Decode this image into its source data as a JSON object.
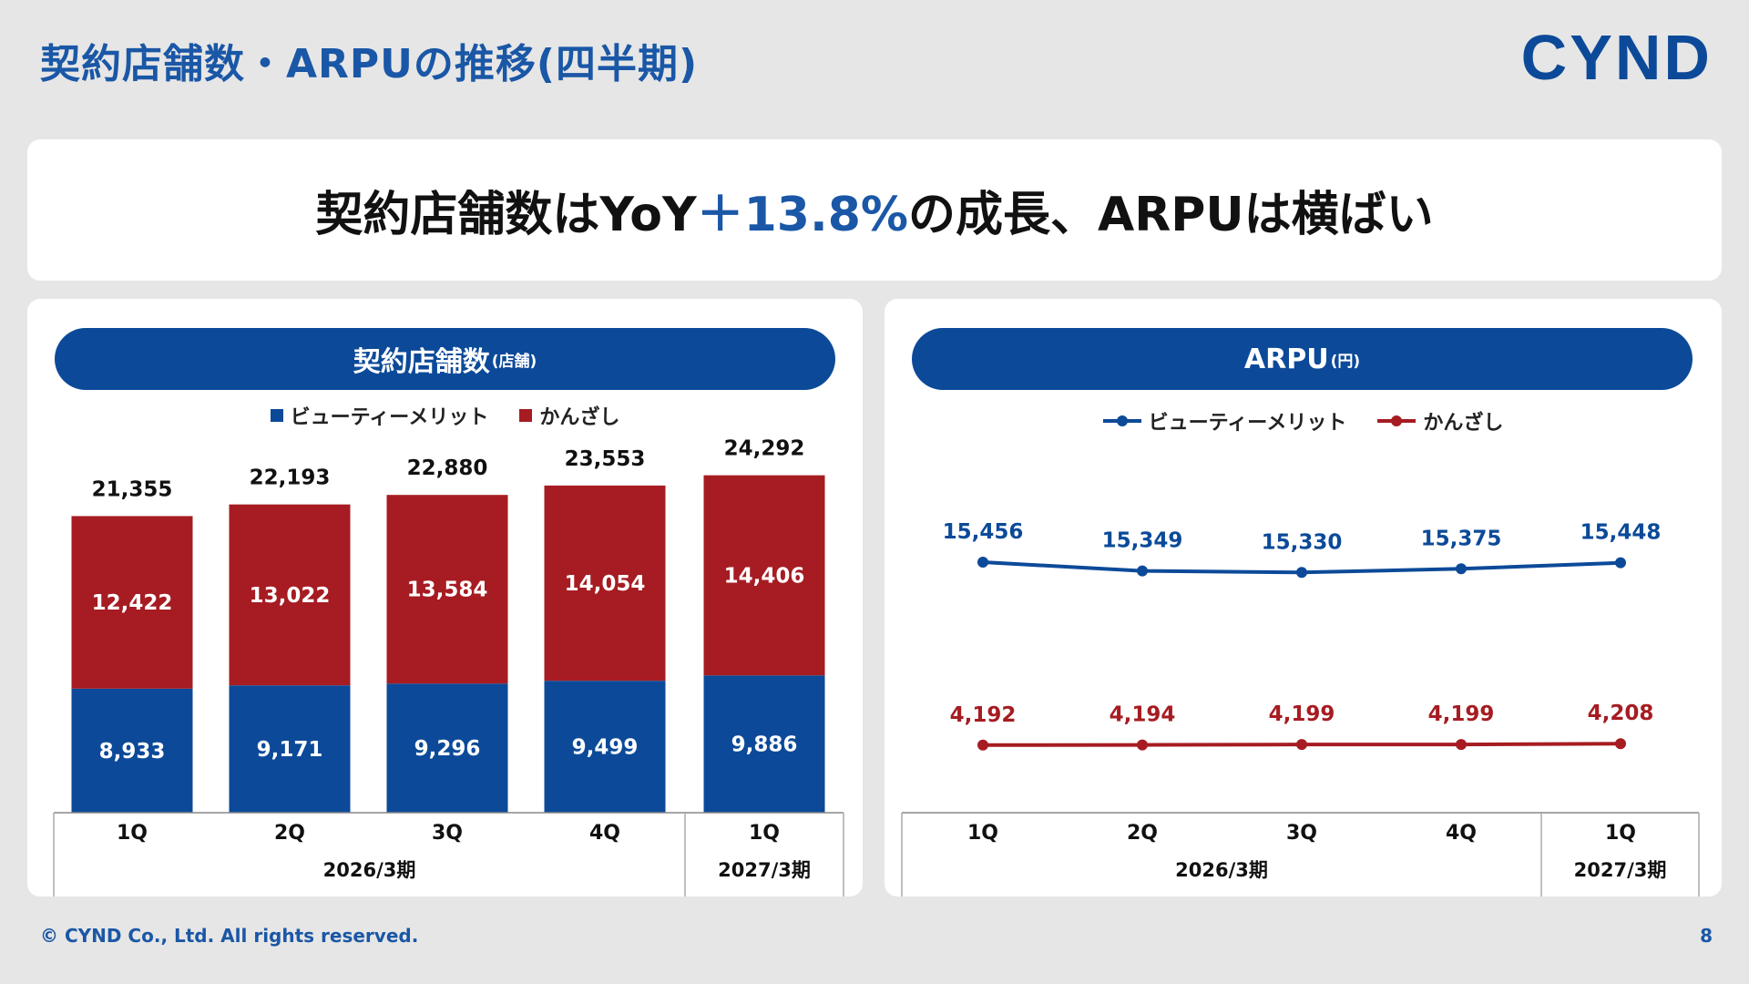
{
  "page_title": "契約店舗数・ARPUの推移(四半期)",
  "logo_text": "CYND",
  "headline": {
    "prefix": "契約店舗数はYoY",
    "highlight": "＋13.8%",
    "suffix": "の成長、ARPUは横ばい"
  },
  "footer": {
    "copyright": "© CYND Co., Ltd. All rights reserved.",
    "page_number": "8"
  },
  "colors": {
    "blue": "#0c4a99",
    "red": "#a61c22",
    "accent_text": "#1a57a6"
  },
  "chart_data": [
    {
      "type": "bar",
      "stacked": true,
      "title": "契約店舗数",
      "title_unit": "(店舗)",
      "categories": [
        "1Q",
        "2Q",
        "3Q",
        "4Q",
        "1Q"
      ],
      "period_groups": [
        {
          "label": "2026/3期",
          "span": 4
        },
        {
          "label": "2027/3期",
          "span": 1
        }
      ],
      "series": [
        {
          "name": "ビューティーメリット",
          "color": "#0c4a99",
          "values": [
            8933,
            9171,
            9296,
            9499,
            9886
          ]
        },
        {
          "name": "かんざし",
          "color": "#a61c22",
          "values": [
            12422,
            13022,
            13584,
            14054,
            14406
          ]
        }
      ],
      "totals": [
        21355,
        22193,
        22880,
        23553,
        24292
      ],
      "ylim": [
        0,
        26500
      ],
      "grid": false,
      "legend_position": "top-center"
    },
    {
      "type": "line",
      "title": "ARPU",
      "title_unit": "(円)",
      "categories": [
        "1Q",
        "2Q",
        "3Q",
        "4Q",
        "1Q"
      ],
      "period_groups": [
        {
          "label": "2026/3期",
          "span": 4
        },
        {
          "label": "2027/3期",
          "span": 1
        }
      ],
      "series": [
        {
          "name": "ビューティーメリット",
          "color": "#0c4a99",
          "values": [
            15456,
            15349,
            15330,
            15375,
            15448
          ]
        },
        {
          "name": "かんざし",
          "color": "#a61c22",
          "values": [
            4192,
            4194,
            4199,
            4199,
            4208
          ]
        }
      ],
      "grid": false,
      "legend_position": "top-center"
    }
  ]
}
